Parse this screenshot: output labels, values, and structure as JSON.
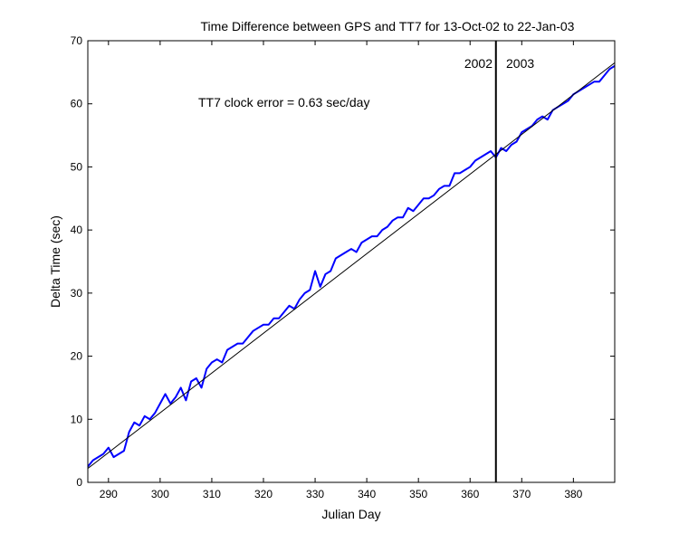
{
  "chart_data": {
    "type": "line",
    "title": "Time Difference between GPS and TT7 for 13-Oct-02 to 22-Jan-03",
    "xlabel": "Julian Day",
    "ylabel": "Delta Time  (sec)",
    "xlim": [
      286,
      388
    ],
    "ylim": [
      0,
      70
    ],
    "x_ticks": [
      290,
      300,
      310,
      320,
      330,
      340,
      350,
      360,
      370,
      380
    ],
    "y_ticks": [
      0,
      10,
      20,
      30,
      40,
      50,
      60,
      70
    ],
    "grid": false,
    "annotations": {
      "clock_error": "TT7 clock error = 0.63 sec/day",
      "year_left": "2002",
      "year_right": "2003"
    },
    "year_boundary_x": 365,
    "series": [
      {
        "color": "#0000ff",
        "x": [
          286,
          287,
          288,
          289,
          290,
          291,
          292,
          293,
          294,
          295,
          296,
          297,
          298,
          299,
          300,
          301,
          302,
          303,
          304,
          305,
          306,
          307,
          308,
          309,
          310,
          311,
          312,
          313,
          314,
          315,
          316,
          317,
          318,
          319,
          320,
          321,
          322,
          323,
          324,
          325,
          326,
          327,
          328,
          329,
          330,
          331,
          332,
          333,
          334,
          335,
          336,
          337,
          338,
          339,
          340,
          341,
          342,
          343,
          344,
          345,
          346,
          347,
          348,
          349,
          350,
          351,
          352,
          353,
          354,
          355,
          356,
          357,
          358,
          359,
          360,
          361,
          362,
          363,
          364,
          365,
          366,
          367,
          368,
          369,
          370,
          371,
          372,
          373,
          374,
          375,
          376,
          377,
          378,
          379,
          380,
          381,
          382,
          383,
          384,
          385,
          386,
          387,
          388
        ],
        "y": [
          2.5,
          3.5,
          4.0,
          4.5,
          5.5,
          4.0,
          4.5,
          5.0,
          8.0,
          9.5,
          9.0,
          10.5,
          10.0,
          11.0,
          12.5,
          14.0,
          12.5,
          13.5,
          15.0,
          13.0,
          16.0,
          16.5,
          15.0,
          18.0,
          19.0,
          19.5,
          19.0,
          21.0,
          21.5,
          22.0,
          22.0,
          23.0,
          24.0,
          24.5,
          25.0,
          25.0,
          26.0,
          26.0,
          27.0,
          28.0,
          27.5,
          29.0,
          30.0,
          30.5,
          33.5,
          31.0,
          33.0,
          33.5,
          35.5,
          36.0,
          36.5,
          37.0,
          36.5,
          38.0,
          38.5,
          39.0,
          39.0,
          40.0,
          40.5,
          41.5,
          42.0,
          42.0,
          43.5,
          43.0,
          44.0,
          45.0,
          45.0,
          45.5,
          46.5,
          47.0,
          47.0,
          49.0,
          49.0,
          49.5,
          50.0,
          51.0,
          51.5,
          52.0,
          52.5,
          51.5,
          53.0,
          52.5,
          53.5,
          54.0,
          55.5,
          56.0,
          56.5,
          57.5,
          58.0,
          57.5,
          59.0,
          59.5,
          60.0,
          60.5,
          61.5,
          62.0,
          62.5,
          63.0,
          63.5,
          63.5,
          64.5,
          65.5,
          66.0
        ]
      },
      {
        "color": "#000000",
        "x": [
          286,
          388
        ],
        "y": [
          2.2,
          66.5
        ]
      }
    ]
  }
}
